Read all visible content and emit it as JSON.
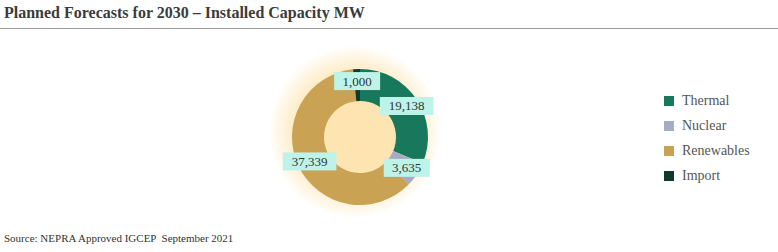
{
  "chart_data": {
    "type": "donut",
    "title": "Planned Forecasts for 2030 – Installed Capacity MW",
    "categories": [
      "Thermal",
      "Nuclear",
      "Renewables",
      "Import"
    ],
    "values": [
      19138,
      3635,
      37339,
      1000
    ],
    "value_labels": [
      "19,138",
      "3,635",
      "37,339",
      "1,000"
    ],
    "colors": [
      "#18785c",
      "#a7abc4",
      "#c9a253",
      "#0e3a2e"
    ],
    "data_labels": true,
    "legend": "right",
    "source": "Source: NEPRA Approved IGCEP  September 2021"
  }
}
